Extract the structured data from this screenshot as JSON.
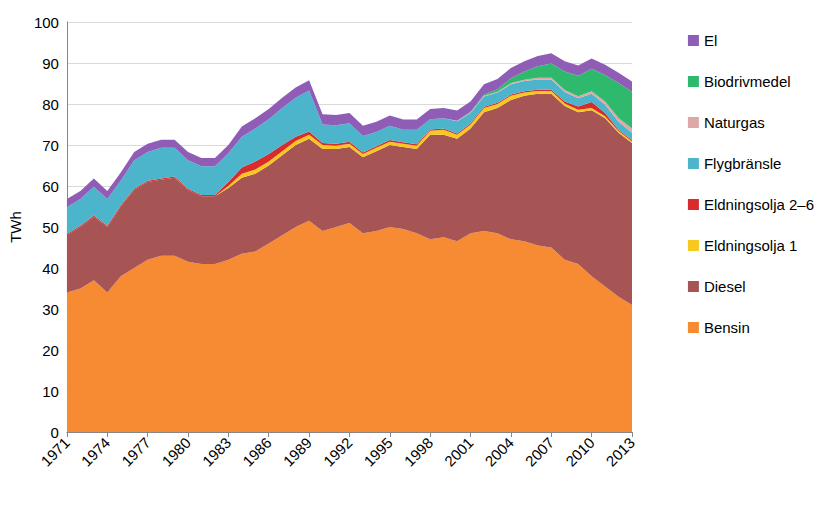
{
  "chart_data": {
    "type": "area",
    "stacked": true,
    "y_label": "TWh",
    "grid": true,
    "legend": "right",
    "categories": [
      "1971",
      null,
      null,
      "1974",
      null,
      null,
      "1977",
      null,
      null,
      "1980",
      null,
      null,
      "1983",
      null,
      null,
      "1986",
      null,
      null,
      "1989",
      null,
      null,
      "1992",
      null,
      null,
      "1995",
      null,
      null,
      "1998",
      null,
      null,
      "2001",
      null,
      null,
      "2004",
      null,
      null,
      "2007",
      null,
      null,
      "2010",
      null,
      null,
      "2013"
    ],
    "ylim": [
      0,
      100
    ],
    "yticks": [
      0,
      10,
      20,
      30,
      40,
      50,
      60,
      70,
      80,
      90,
      100
    ],
    "series": [
      {
        "name": "Bensin",
        "color": "#F68B33",
        "values": [
          34,
          35,
          37,
          34,
          38,
          40,
          42,
          43,
          43,
          41.5,
          41,
          41,
          42,
          43.5,
          44,
          46,
          48,
          50,
          51.5,
          49,
          50,
          51,
          48.5,
          49,
          50,
          49.5,
          48.5,
          47,
          47.5,
          46.5,
          48.5,
          49,
          48.5,
          47,
          46.5,
          45.5,
          45,
          42,
          41,
          38,
          35.5,
          33,
          31
        ]
      },
      {
        "name": "Diesel",
        "color": "#A75454",
        "values": [
          14,
          15,
          15.5,
          16,
          17,
          19,
          19,
          18.5,
          19,
          17.5,
          16.5,
          16.5,
          17.5,
          18.5,
          19,
          19,
          19.5,
          20,
          20,
          20,
          19,
          18.5,
          18.5,
          19.5,
          20,
          20,
          20.5,
          25.5,
          25,
          25,
          25.5,
          29,
          30.5,
          34,
          35.5,
          37,
          37.5,
          37.5,
          37,
          40.5,
          41,
          40,
          39.5
        ]
      },
      {
        "name": "Eldningsolja 1",
        "color": "#F7C81E",
        "values": [
          0,
          0,
          0,
          0,
          0,
          0,
          0,
          0,
          0,
          0,
          0,
          0,
          0.5,
          1,
          1,
          1,
          1,
          1,
          1,
          1,
          0.8,
          0.8,
          0.8,
          0.8,
          0.8,
          0.8,
          0.8,
          1,
          1.2,
          1,
          1,
          1,
          1,
          1,
          0.8,
          0.7,
          0.7,
          0.6,
          0.6,
          0.5,
          0.5,
          0.4,
          0.4
        ]
      },
      {
        "name": "Eldningsolja 2–6",
        "color": "#D92B2B",
        "values": [
          0.3,
          0.3,
          0.3,
          0.3,
          0.3,
          0.3,
          0.3,
          0.3,
          0.3,
          0.3,
          0.3,
          0.3,
          1,
          1.5,
          2,
          1.8,
          1.5,
          1,
          0.8,
          0.5,
          0.5,
          0.5,
          0.4,
          0.4,
          0.4,
          0.4,
          0.4,
          0.3,
          0.3,
          0.3,
          0.3,
          0.3,
          0.3,
          0.3,
          0.3,
          0.3,
          0.3,
          0.5,
          0.8,
          1.5,
          0.8,
          0.3,
          0.3
        ]
      },
      {
        "name": "Flygbränsle",
        "color": "#4CB5CB",
        "values": [
          6.5,
          6.5,
          7,
          6.5,
          6,
          7,
          7,
          7.5,
          7,
          7,
          7,
          7,
          7,
          7.5,
          8,
          8.5,
          9,
          9.5,
          10,
          4.5,
          4.5,
          4.5,
          4,
          3.5,
          3.5,
          3,
          3.5,
          2.5,
          2.5,
          3,
          2.5,
          2.5,
          2.5,
          2.5,
          2.5,
          2.5,
          2.5,
          2.3,
          2,
          2,
          2,
          2,
          1.8
        ]
      },
      {
        "name": "Naturgas",
        "color": "#DDA8A8",
        "values": [
          0,
          0,
          0,
          0,
          0,
          0,
          0,
          0,
          0,
          0,
          0,
          0,
          0,
          0,
          0,
          0,
          0,
          0,
          0,
          0,
          0,
          0,
          0,
          0,
          0,
          0,
          0,
          0,
          0,
          0.1,
          0.1,
          0.2,
          0.2,
          0.3,
          0.3,
          0.4,
          0.4,
          0.5,
          0.5,
          0.6,
          0.8,
          0.9,
          1
        ]
      },
      {
        "name": "Biodrivmedel",
        "color": "#2FB96C",
        "values": [
          0,
          0,
          0,
          0,
          0,
          0,
          0,
          0,
          0,
          0,
          0,
          0,
          0,
          0,
          0,
          0,
          0,
          0,
          0,
          0,
          0,
          0,
          0,
          0,
          0,
          0,
          0,
          0,
          0,
          0,
          0.2,
          0.3,
          0.6,
          1.2,
          2,
          2.8,
          3.5,
          4.5,
          5,
          5.5,
          6.5,
          8.5,
          9
        ]
      },
      {
        "name": "El",
        "color": "#8F5CB6",
        "values": [
          2,
          2,
          2,
          2,
          2,
          2,
          2,
          2,
          2,
          2,
          2,
          2,
          2,
          2.5,
          2.5,
          2.5,
          2.5,
          2.5,
          2.5,
          2.5,
          2.5,
          2.5,
          2.5,
          2.5,
          2.5,
          2.5,
          2.5,
          2.5,
          2.5,
          2.5,
          2.5,
          2.5,
          2.5,
          2.5,
          2.5,
          2.5,
          2.5,
          2.5,
          2.5,
          2.5,
          2.5,
          2.5,
          2.5
        ]
      }
    ]
  }
}
